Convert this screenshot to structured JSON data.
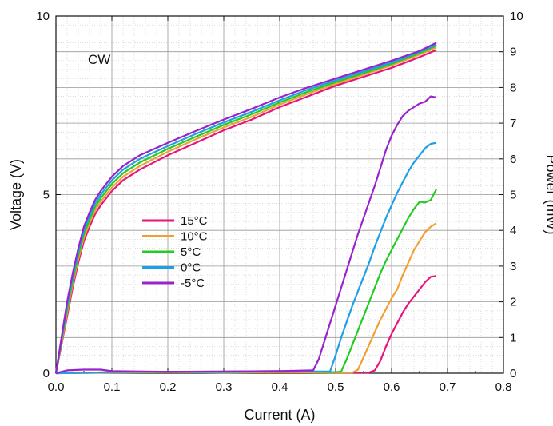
{
  "chart_data": {
    "type": "line",
    "annotation": "CW",
    "xlabel": "Current (A)",
    "ylabel_left": "Voltage (V)",
    "ylabel_right": "Power (mW)",
    "xlim": [
      0.0,
      0.8
    ],
    "ylim_left": [
      0,
      10
    ],
    "ylim_right": [
      0,
      10
    ],
    "x_ticks": [
      "0.0",
      "0.1",
      "0.2",
      "0.3",
      "0.4",
      "0.5",
      "0.6",
      "0.7",
      "0.8"
    ],
    "y_left_ticks": [
      "0",
      "5",
      "10"
    ],
    "y_right_ticks": [
      "0",
      "1",
      "2",
      "3",
      "4",
      "5",
      "6",
      "7",
      "8",
      "9",
      "10"
    ],
    "grid": true,
    "legend_placement": "lower-left",
    "series": [
      {
        "name": "15°C",
        "color": "#e8137d",
        "voltage": {
          "x": [
            0.0,
            0.01,
            0.02,
            0.03,
            0.04,
            0.05,
            0.06,
            0.07,
            0.08,
            0.1,
            0.12,
            0.15,
            0.2,
            0.25,
            0.3,
            0.35,
            0.4,
            0.45,
            0.5,
            0.55,
            0.6,
            0.65,
            0.68
          ],
          "y": [
            0.0,
            0.8,
            1.6,
            2.4,
            3.1,
            3.7,
            4.1,
            4.45,
            4.7,
            5.1,
            5.4,
            5.7,
            6.1,
            6.45,
            6.8,
            7.1,
            7.45,
            7.75,
            8.05,
            8.3,
            8.55,
            8.85,
            9.05
          ]
        },
        "power": {
          "x": [
            0.0,
            0.1,
            0.2,
            0.3,
            0.4,
            0.5,
            0.56,
            0.57,
            0.58,
            0.59,
            0.6,
            0.61,
            0.62,
            0.63,
            0.64,
            0.65,
            0.66,
            0.67,
            0.68
          ],
          "y": [
            0.0,
            0.02,
            0.03,
            0.02,
            0.03,
            0.02,
            0.02,
            0.08,
            0.35,
            0.75,
            1.1,
            1.4,
            1.7,
            1.95,
            2.15,
            2.35,
            2.55,
            2.7,
            2.72
          ]
        }
      },
      {
        "name": "10°C",
        "color": "#f0a030",
        "voltage": {
          "x": [
            0.0,
            0.01,
            0.02,
            0.03,
            0.04,
            0.05,
            0.06,
            0.07,
            0.08,
            0.1,
            0.12,
            0.15,
            0.2,
            0.25,
            0.3,
            0.35,
            0.4,
            0.45,
            0.5,
            0.55,
            0.6,
            0.65,
            0.68
          ],
          "y": [
            0.0,
            0.85,
            1.7,
            2.5,
            3.2,
            3.8,
            4.2,
            4.55,
            4.8,
            5.2,
            5.5,
            5.8,
            6.2,
            6.55,
            6.88,
            7.18,
            7.52,
            7.82,
            8.1,
            8.36,
            8.62,
            8.92,
            9.12
          ]
        },
        "power": {
          "x": [
            0.0,
            0.1,
            0.2,
            0.3,
            0.4,
            0.5,
            0.53,
            0.54,
            0.55,
            0.56,
            0.57,
            0.58,
            0.59,
            0.6,
            0.61,
            0.62,
            0.63,
            0.64,
            0.65,
            0.66,
            0.67,
            0.68
          ],
          "y": [
            0.0,
            0.02,
            0.03,
            0.02,
            0.03,
            0.02,
            0.02,
            0.1,
            0.45,
            0.8,
            1.15,
            1.5,
            1.8,
            2.1,
            2.35,
            2.75,
            3.1,
            3.45,
            3.7,
            3.95,
            4.1,
            4.2
          ]
        }
      },
      {
        "name": "5°C",
        "color": "#22cc22",
        "voltage": {
          "x": [
            0.0,
            0.01,
            0.02,
            0.03,
            0.04,
            0.05,
            0.06,
            0.07,
            0.08,
            0.1,
            0.12,
            0.15,
            0.2,
            0.25,
            0.3,
            0.35,
            0.4,
            0.45,
            0.5,
            0.55,
            0.6,
            0.65,
            0.68
          ],
          "y": [
            0.0,
            0.9,
            1.8,
            2.6,
            3.3,
            3.9,
            4.3,
            4.65,
            4.9,
            5.3,
            5.6,
            5.9,
            6.28,
            6.62,
            6.95,
            7.25,
            7.58,
            7.88,
            8.15,
            8.4,
            8.66,
            8.96,
            9.17
          ]
        },
        "power": {
          "x": [
            0.0,
            0.1,
            0.2,
            0.3,
            0.4,
            0.5,
            0.51,
            0.52,
            0.53,
            0.54,
            0.55,
            0.56,
            0.57,
            0.58,
            0.59,
            0.6,
            0.61,
            0.62,
            0.63,
            0.64,
            0.65,
            0.66,
            0.67,
            0.68
          ],
          "y": [
            0.0,
            0.03,
            0.04,
            0.05,
            0.06,
            0.03,
            0.05,
            0.4,
            0.8,
            1.2,
            1.6,
            2.0,
            2.4,
            2.8,
            3.15,
            3.45,
            3.75,
            4.05,
            4.35,
            4.6,
            4.8,
            4.78,
            4.85,
            5.15
          ]
        }
      },
      {
        "name": "0°C",
        "color": "#1ea0e6",
        "voltage": {
          "x": [
            0.0,
            0.01,
            0.02,
            0.03,
            0.04,
            0.05,
            0.06,
            0.07,
            0.08,
            0.1,
            0.12,
            0.15,
            0.2,
            0.25,
            0.3,
            0.35,
            0.4,
            0.45,
            0.5,
            0.55,
            0.6,
            0.65,
            0.68
          ],
          "y": [
            0.0,
            0.95,
            1.9,
            2.7,
            3.4,
            4.0,
            4.4,
            4.75,
            5.0,
            5.4,
            5.7,
            6.0,
            6.36,
            6.7,
            7.02,
            7.32,
            7.64,
            7.94,
            8.2,
            8.45,
            8.7,
            9.0,
            9.2
          ]
        },
        "power": {
          "x": [
            0.0,
            0.1,
            0.2,
            0.3,
            0.4,
            0.49,
            0.5,
            0.51,
            0.52,
            0.53,
            0.54,
            0.55,
            0.56,
            0.57,
            0.58,
            0.59,
            0.6,
            0.61,
            0.62,
            0.63,
            0.64,
            0.65,
            0.66,
            0.67,
            0.68
          ],
          "y": [
            0.0,
            0.03,
            0.04,
            0.03,
            0.05,
            0.05,
            0.5,
            1.0,
            1.45,
            1.9,
            2.3,
            2.7,
            3.1,
            3.55,
            3.95,
            4.35,
            4.7,
            5.05,
            5.35,
            5.65,
            5.9,
            6.1,
            6.3,
            6.42,
            6.45
          ]
        }
      },
      {
        "name": "-5°C",
        "color": "#9922cc",
        "voltage": {
          "x": [
            0.0,
            0.01,
            0.02,
            0.03,
            0.04,
            0.05,
            0.06,
            0.07,
            0.08,
            0.1,
            0.12,
            0.15,
            0.2,
            0.25,
            0.3,
            0.35,
            0.4,
            0.45,
            0.5,
            0.55,
            0.6,
            0.65,
            0.68
          ],
          "y": [
            0.0,
            1.0,
            2.0,
            2.8,
            3.5,
            4.1,
            4.5,
            4.85,
            5.1,
            5.5,
            5.8,
            6.1,
            6.45,
            6.78,
            7.1,
            7.4,
            7.72,
            8.0,
            8.25,
            8.5,
            8.75,
            9.02,
            9.25
          ]
        },
        "power": {
          "x": [
            0.0,
            0.02,
            0.05,
            0.08,
            0.1,
            0.2,
            0.3,
            0.4,
            0.46,
            0.47,
            0.48,
            0.49,
            0.5,
            0.51,
            0.52,
            0.53,
            0.54,
            0.55,
            0.56,
            0.57,
            0.58,
            0.59,
            0.6,
            0.61,
            0.62,
            0.63,
            0.64,
            0.65,
            0.66,
            0.67,
            0.68
          ],
          "y": [
            0.0,
            0.08,
            0.1,
            0.1,
            0.06,
            0.04,
            0.05,
            0.06,
            0.08,
            0.4,
            0.9,
            1.4,
            1.9,
            2.4,
            2.9,
            3.4,
            3.9,
            4.35,
            4.8,
            5.25,
            5.75,
            6.25,
            6.65,
            6.95,
            7.2,
            7.35,
            7.45,
            7.55,
            7.6,
            7.75,
            7.72
          ]
        }
      }
    ]
  }
}
